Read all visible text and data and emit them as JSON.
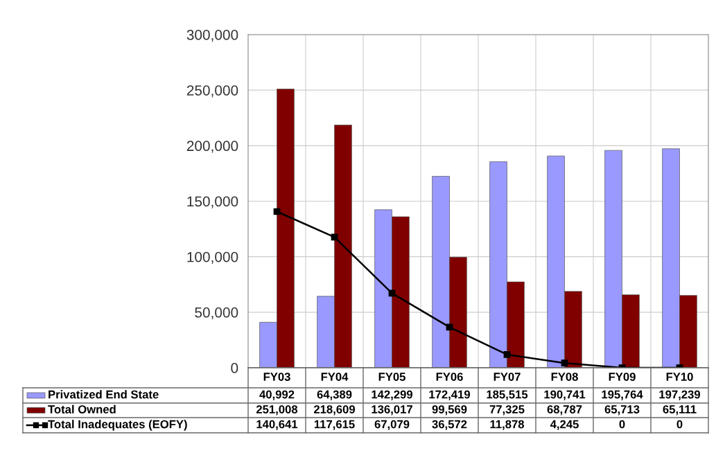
{
  "chart_data": {
    "type": "bar",
    "categories": [
      "FY03",
      "FY04",
      "FY05",
      "FY06",
      "FY07",
      "FY08",
      "FY09",
      "FY10"
    ],
    "series": [
      {
        "name": "Privatized End State",
        "color": "#9999ff",
        "values": [
          40992,
          64389,
          142299,
          172419,
          185515,
          190741,
          195764,
          197239
        ],
        "value_labels": [
          "40,992",
          "64,389",
          "142,299",
          "172,419",
          "185,515",
          "190,741",
          "195,764",
          "197,239"
        ]
      },
      {
        "name": "Total Owned",
        "color": "#800000",
        "values": [
          251008,
          218609,
          136017,
          99569,
          77325,
          68787,
          65713,
          65111
        ],
        "value_labels": [
          "251,008",
          "218,609",
          "136,017",
          "99,569",
          "77,325",
          "68,787",
          "65,713",
          "65,111"
        ]
      },
      {
        "name": "Total Inadequates (EOFY)",
        "type": "line",
        "color": "#000000",
        "marker": "square",
        "values": [
          140641,
          117615,
          67079,
          36572,
          11878,
          4245,
          0,
          0
        ],
        "value_labels": [
          "140,641",
          "117,615",
          "67,079",
          "36,572",
          "11,878",
          "4,245",
          "0",
          "0"
        ]
      }
    ],
    "ylim": [
      0,
      300000
    ],
    "yticks": [
      {
        "value": 0,
        "label": "0"
      },
      {
        "value": 50000,
        "label": "50,000"
      },
      {
        "value": 100000,
        "label": "100,000"
      },
      {
        "value": 150000,
        "label": "150,000"
      },
      {
        "value": 200000,
        "label": "200,000"
      },
      {
        "value": 250000,
        "label": "250,000"
      },
      {
        "value": 300000,
        "label": "300,000"
      }
    ],
    "grid": true,
    "legend": "bottom"
  }
}
